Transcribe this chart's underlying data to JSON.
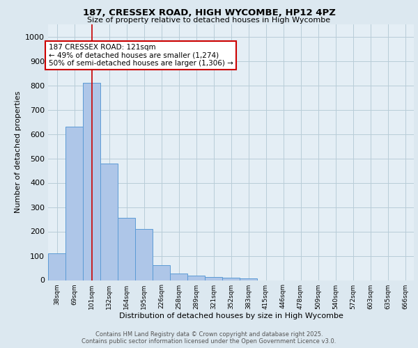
{
  "title1": "187, CRESSEX ROAD, HIGH WYCOMBE, HP12 4PZ",
  "title2": "Size of property relative to detached houses in High Wycombe",
  "xlabel": "Distribution of detached houses by size in High Wycombe",
  "ylabel": "Number of detached properties",
  "bar_values": [
    110,
    630,
    810,
    480,
    255,
    210,
    62,
    27,
    20,
    14,
    10,
    8,
    0,
    0,
    0,
    0,
    0,
    0,
    0,
    0,
    0
  ],
  "bar_labels": [
    "38sqm",
    "69sqm",
    "101sqm",
    "132sqm",
    "164sqm",
    "195sqm",
    "226sqm",
    "258sqm",
    "289sqm",
    "321sqm",
    "352sqm",
    "383sqm",
    "415sqm",
    "446sqm",
    "478sqm",
    "509sqm",
    "540sqm",
    "572sqm",
    "603sqm",
    "635sqm",
    "666sqm"
  ],
  "bar_color": "#aec6e8",
  "bar_edge_color": "#5b9bd5",
  "annotation_box_color": "#cc0000",
  "annotation_bg": "#ffffff",
  "vline_color": "#cc0000",
  "vline_x": 2.5,
  "annotation_text": "187 CRESSEX ROAD: 121sqm\n← 49% of detached houses are smaller (1,274)\n50% of semi-detached houses are larger (1,306) →",
  "annotation_fontsize": 7.5,
  "ylim": [
    0,
    1050
  ],
  "yticks": [
    0,
    100,
    200,
    300,
    400,
    500,
    600,
    700,
    800,
    900,
    1000
  ],
  "footer1": "Contains HM Land Registry data © Crown copyright and database right 2025.",
  "footer2": "Contains public sector information licensed under the Open Government Licence v3.0.",
  "bg_color": "#dce8f0",
  "plot_bg_color": "#e4eef5",
  "grid_color": "#b8ccd8"
}
